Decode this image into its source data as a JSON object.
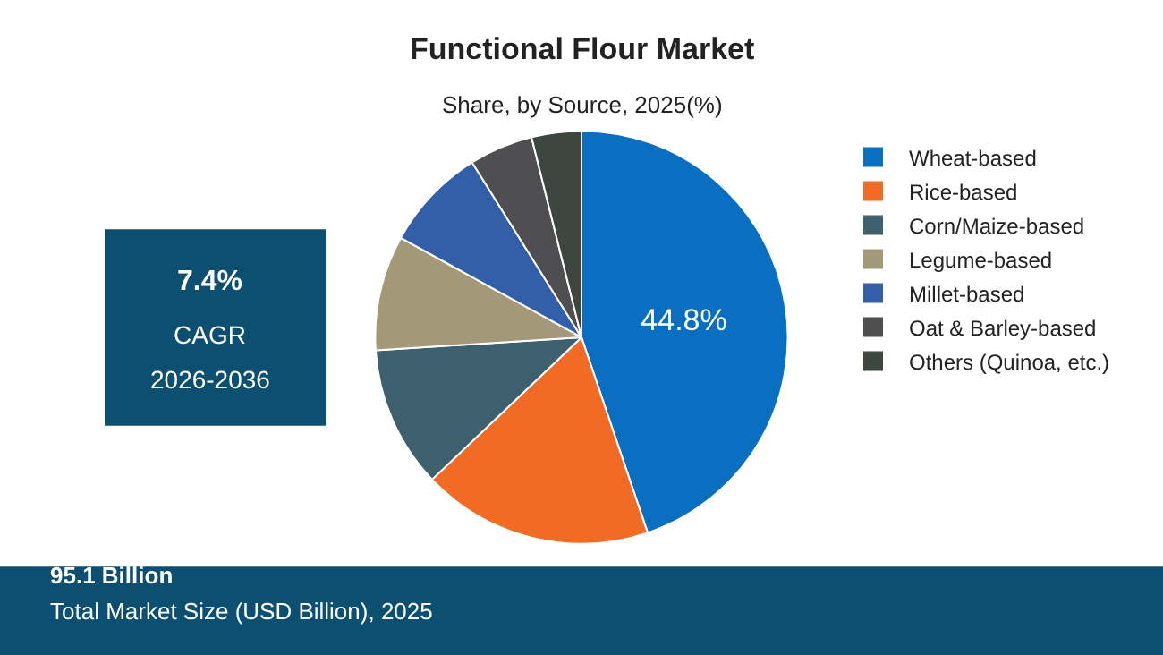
{
  "chart_data": {
    "type": "pie",
    "title": "Functional Flour Market",
    "subtitle": "Share, by Source, 2025(%)",
    "categories": [
      "Wheat-based",
      "Rice-based",
      "Corn/Maize-based",
      "Legume-based",
      "Millet-based",
      "Oat & Barley-based",
      "Others (Quinoa, etc.)"
    ],
    "values": [
      44.8,
      18.1,
      11.1,
      9.0,
      8.1,
      5.0,
      3.9
    ],
    "colors": [
      "#0a6fc0",
      "#f26b25",
      "#3e5f6d",
      "#a39878",
      "#325fa8",
      "#4f4e50",
      "#3d4740"
    ],
    "value_labels": [
      "44.8%",
      null,
      null,
      null,
      null,
      null,
      null
    ],
    "legend": "right",
    "annotations": [
      "7.4%",
      "CAGR",
      "2026-2036",
      "95.1 Billion",
      "Total Market Size (USD Billion), 2025"
    ]
  }
}
